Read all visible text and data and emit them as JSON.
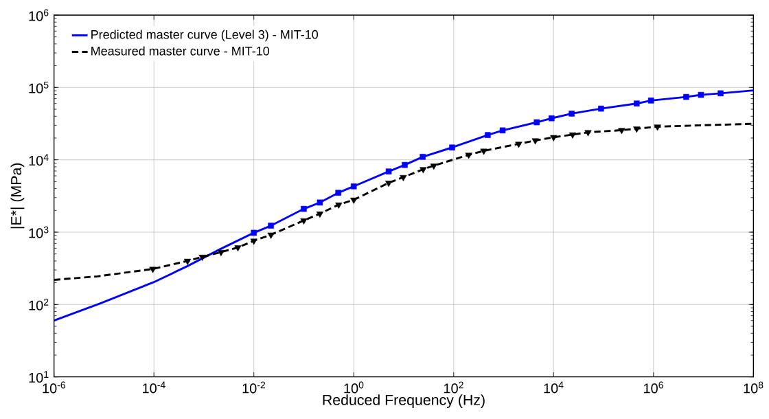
{
  "chart_data": {
    "type": "line",
    "xlabel": "Reduced Frequency (Hz)",
    "ylabel": "|E*| (MPa)",
    "log": "xy",
    "grid": true,
    "legend": "top left",
    "xlim": [
      1e-06,
      100000000.0
    ],
    "ylim": [
      10,
      1000000.0
    ],
    "xticks": [
      {
        "value": 1e-06,
        "label": "10$^{-6}$"
      },
      {
        "value": 0.0001,
        "label": "10$^{-4}$"
      },
      {
        "value": 0.01,
        "label": "10$^{-2}$"
      },
      {
        "value": 1,
        "label": "10$^{0}$"
      },
      {
        "value": 100.0,
        "label": "10$^{2}$"
      },
      {
        "value": 10000.0,
        "label": "10$^{4}$"
      },
      {
        "value": 1000000.0,
        "label": "10$^{6}$"
      },
      {
        "value": 100000000.0,
        "label": "10$^{8}$"
      }
    ],
    "yticks": [
      {
        "value": 10,
        "label": "10$^{1}$"
      },
      {
        "value": 100,
        "label": "10$^{2}$"
      },
      {
        "value": 1000,
        "label": "10$^{3}$"
      },
      {
        "value": 10000,
        "label": "10$^{4}$"
      },
      {
        "value": 100000,
        "label": "10$^{5}$"
      },
      {
        "value": 1000000,
        "label": "10$^{6}$"
      }
    ],
    "series": [
      {
        "name": "Predicted master curve (Level 3) - MIT-10",
        "color": "#0000ff",
        "line_style": "solid",
        "marker": "none",
        "x": [
          1e-06,
          8.5e-06,
          0.0001,
          0.00047,
          0.0022,
          0.01,
          0.022,
          0.1,
          0.21,
          0.49,
          1,
          5,
          10.5,
          24,
          93,
          480,
          955,
          4600,
          9100,
          23000,
          89000,
          460000.0,
          890000.0,
          4500000.0,
          8900000.0,
          22000000.0,
          100000000.0
        ],
        "values": [
          60,
          104,
          204,
          340,
          590,
          980,
          1230,
          2100,
          2570,
          3500,
          4300,
          6900,
          8500,
          11000,
          14800,
          22000,
          25500,
          33000,
          37500,
          43500,
          51000,
          60000,
          66000,
          74000,
          79000,
          83000,
          91000
        ]
      },
      {
        "name": "Measured master curve - MIT-10",
        "color": "#000000",
        "line_style": "dashed",
        "marker": "none",
        "x": [
          1e-06,
          7.4e-06,
          9.5e-05,
          0.00047,
          0.00093,
          0.0022,
          0.0048,
          0.01,
          0.022,
          0.1,
          0.21,
          0.5,
          1,
          5,
          9.8,
          24.5,
          40,
          200,
          400,
          2000,
          4300,
          10000.0,
          24000,
          49000,
          230000.0,
          460000.0,
          1200000.0,
          9300000.0,
          100000000.0
        ],
        "values": [
          219,
          245,
          310,
          400,
          455,
          530,
          615,
          760,
          920,
          1450,
          1800,
          2400,
          2800,
          4800,
          5750,
          7400,
          8300,
          11700,
          13300,
          16600,
          18500,
          20500,
          22300,
          24000,
          25700,
          26900,
          28700,
          30000,
          31500
        ]
      },
      {
        "type": "scatter",
        "color": "#0000ff",
        "marker": "square",
        "x": [
          0.01,
          0.022,
          0.1,
          0.21,
          0.49,
          1,
          5,
          10.5,
          24,
          93,
          480,
          955,
          4600,
          9100,
          23000,
          89000,
          460000.0,
          890000.0,
          4500000.0,
          8900000.0,
          22000000.0
        ],
        "values": [
          980,
          1230,
          2100,
          2570,
          3500,
          4300,
          6900,
          8500,
          11000,
          14800,
          22000,
          25500,
          33000,
          37500,
          43500,
          51000,
          60000,
          66000,
          74000,
          79000,
          83000
        ]
      },
      {
        "type": "scatter",
        "color": "#000000",
        "marker": "triangle",
        "x": [
          9.5e-05,
          0.00047,
          0.00093,
          0.0022,
          0.0048,
          0.01,
          0.022,
          0.1,
          0.21,
          0.5,
          1,
          5,
          9.8,
          24.5,
          40,
          200,
          400,
          2000,
          4300,
          10000.0,
          24000,
          49000,
          230000.0,
          460000.0,
          1200000.0
        ],
        "values": [
          310,
          400,
          455,
          530,
          615,
          760,
          920,
          1450,
          1800,
          2400,
          2800,
          4800,
          5750,
          7400,
          8300,
          11700,
          13300,
          16600,
          18500,
          20500,
          22300,
          24000,
          25700,
          26900,
          28700
        ]
      }
    ]
  }
}
